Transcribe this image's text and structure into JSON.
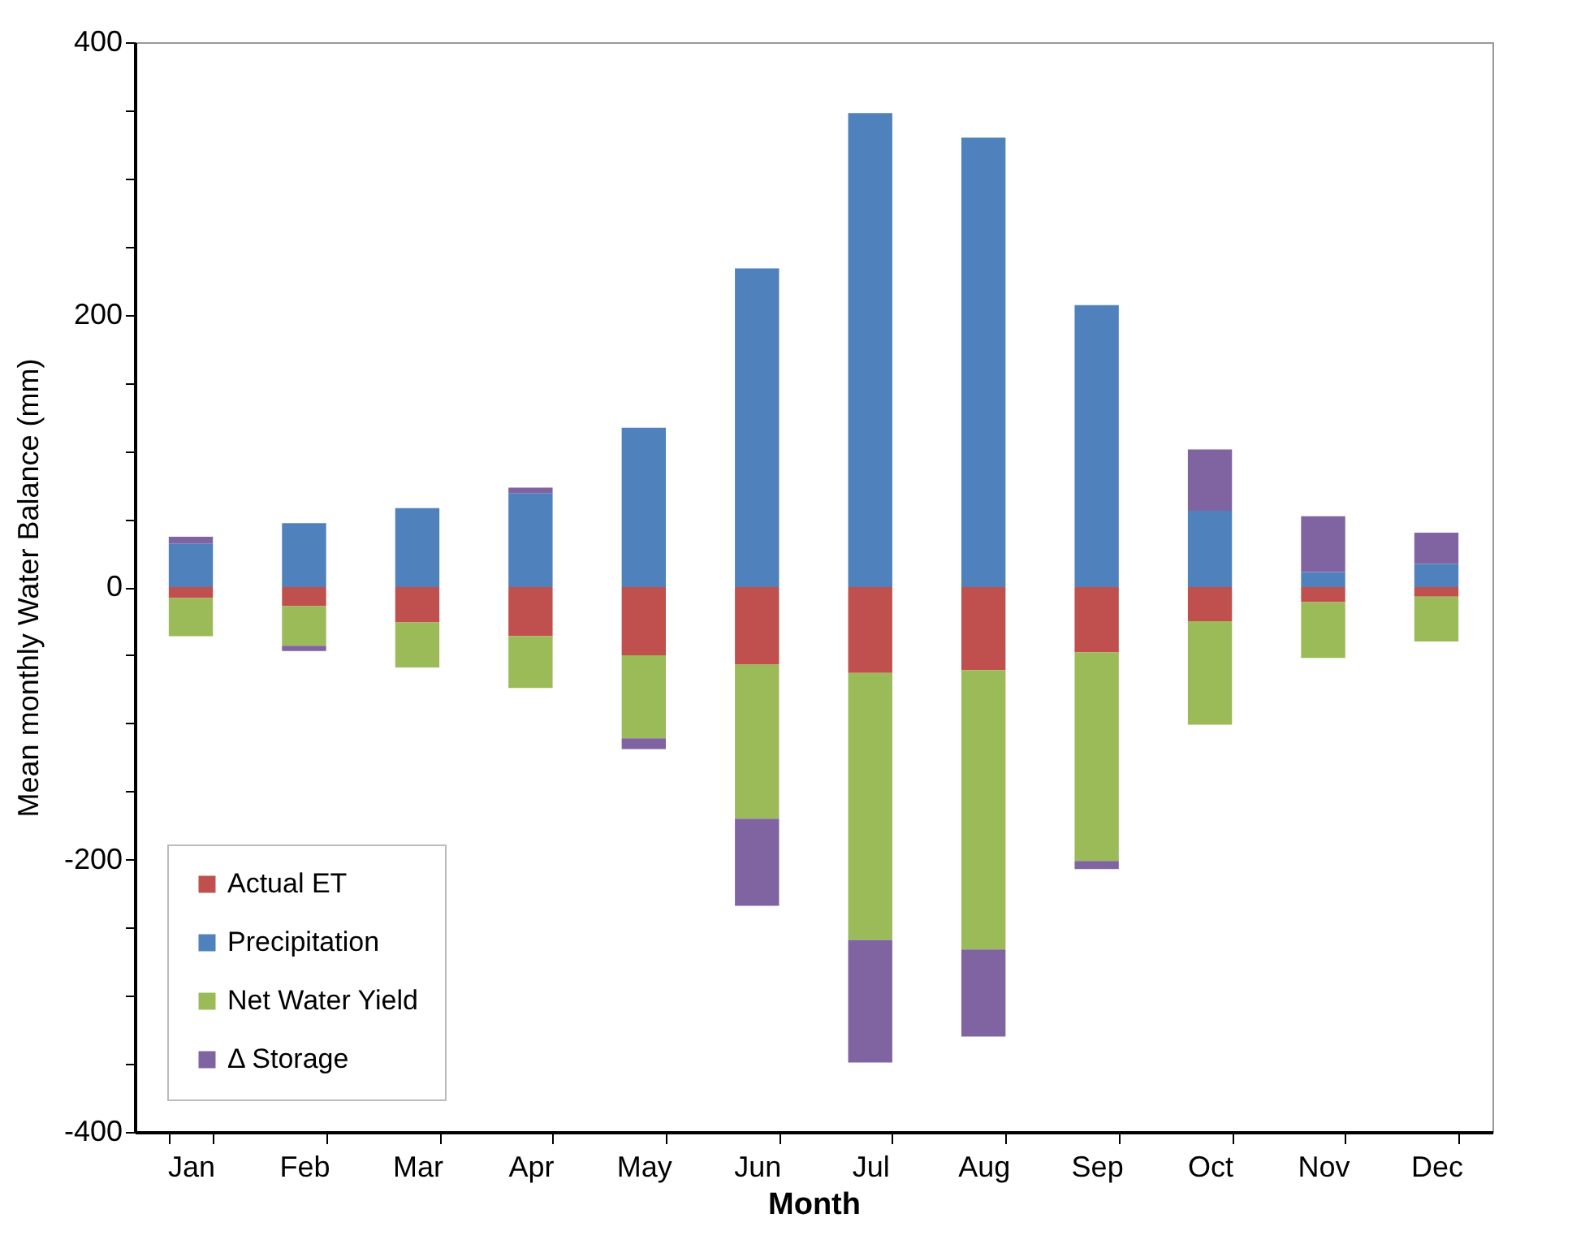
{
  "chart_data": {
    "type": "bar",
    "stacked": true,
    "xlabel": "Month",
    "ylabel": "Mean monthly Water Balance (mm)",
    "categories": [
      "Jan",
      "Feb",
      "Mar",
      "Apr",
      "May",
      "Jun",
      "Jul",
      "Aug",
      "Sep",
      "Oct",
      "Nov",
      "Dec"
    ],
    "series": [
      {
        "name": "Actual ET",
        "color": "#c0504d",
        "values": [
          -8,
          -14,
          -26,
          -36,
          -50,
          -57,
          -63,
          -61,
          -48,
          -25,
          -11,
          -7
        ]
      },
      {
        "name": "Precipitation",
        "color": "#4f81bd",
        "values": [
          32,
          47,
          58,
          69,
          117,
          234,
          348,
          330,
          207,
          56,
          11,
          17
        ]
      },
      {
        "name": "Net Water Yield",
        "color": "#9bbb59",
        "values": [
          -28,
          -29,
          -33,
          -38,
          -61,
          -113,
          -196,
          -205,
          -153,
          -76,
          -41,
          -33
        ]
      },
      {
        "name": "Δ Storage",
        "color": "#8064a2",
        "values": [
          5,
          -4,
          null,
          4,
          -8,
          -64,
          -90,
          -64,
          -6,
          45,
          41,
          23
        ]
      }
    ],
    "ylim": [
      -400,
      400
    ],
    "yticks": [
      -400,
      {
        "value": -350,
        "label": null
      },
      {
        "value": -300,
        "label": null
      },
      {
        "value": -250,
        "label": null
      },
      -200,
      {
        "value": -150,
        "label": null
      },
      {
        "value": -100,
        "label": null
      },
      {
        "value": -50,
        "label": null
      },
      0,
      {
        "value": 50,
        "label": null
      },
      {
        "value": 100,
        "label": null
      },
      {
        "value": 150,
        "label": null
      },
      200,
      {
        "value": 250,
        "label": null
      },
      {
        "value": 300,
        "label": null
      },
      {
        "value": 350,
        "label": null
      },
      400
    ],
    "legend": "bottom left",
    "grid": false
  }
}
